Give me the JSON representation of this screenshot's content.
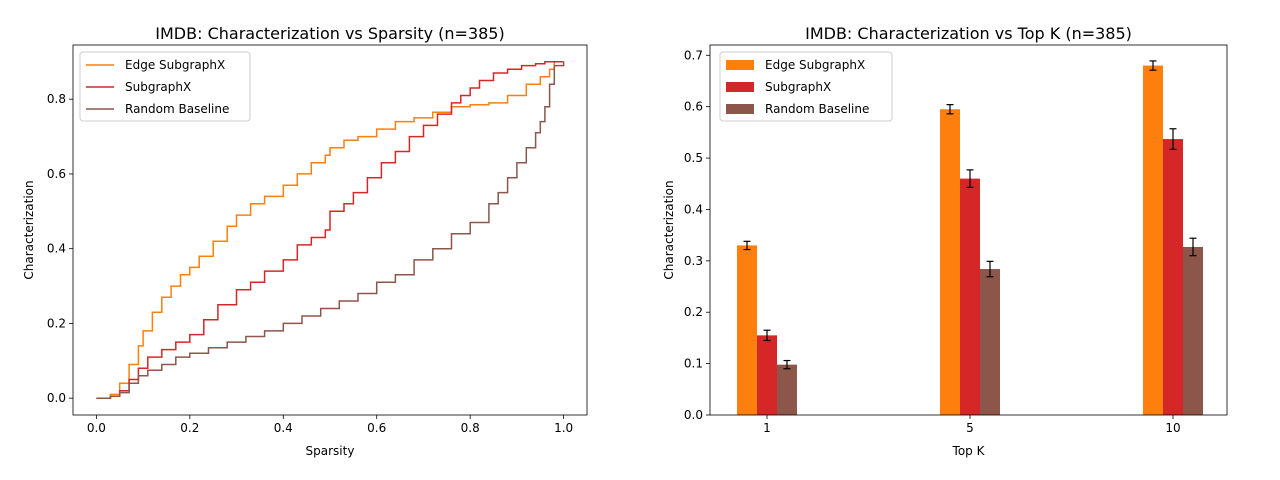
{
  "chart_data": [
    {
      "type": "line",
      "title": "IMDB: Characterization vs Sparsity (n=385)",
      "xlabel": "Sparsity",
      "ylabel": "Characterization",
      "xlim": [
        -0.05,
        1.05
      ],
      "ylim": [
        -0.045,
        0.945
      ],
      "xticks": [
        0.0,
        0.2,
        0.4,
        0.6,
        0.8,
        1.0
      ],
      "xtick_labels": [
        "0.0",
        "0.2",
        "0.4",
        "0.6",
        "0.8",
        "1.0"
      ],
      "yticks": [
        0.0,
        0.2,
        0.4,
        0.6,
        0.8
      ],
      "ytick_labels": [
        "0.0",
        "0.2",
        "0.4",
        "0.6",
        "0.8"
      ],
      "legend_position": "upper-left",
      "grid": false,
      "series": [
        {
          "name": "Edge SubgraphX",
          "color": "#ff7f0e",
          "x": [
            0.0,
            0.03,
            0.05,
            0.07,
            0.09,
            0.1,
            0.12,
            0.14,
            0.16,
            0.18,
            0.2,
            0.22,
            0.25,
            0.28,
            0.3,
            0.33,
            0.36,
            0.4,
            0.43,
            0.46,
            0.49,
            0.5,
            0.53,
            0.56,
            0.6,
            0.64,
            0.68,
            0.72,
            0.76,
            0.8,
            0.84,
            0.88,
            0.92,
            0.95,
            0.97,
            0.98,
            1.0
          ],
          "y": [
            0.0,
            0.01,
            0.04,
            0.09,
            0.14,
            0.18,
            0.23,
            0.27,
            0.3,
            0.33,
            0.35,
            0.38,
            0.42,
            0.46,
            0.49,
            0.52,
            0.54,
            0.57,
            0.6,
            0.63,
            0.65,
            0.67,
            0.69,
            0.7,
            0.72,
            0.74,
            0.75,
            0.765,
            0.78,
            0.785,
            0.79,
            0.81,
            0.84,
            0.86,
            0.88,
            0.9,
            0.9
          ]
        },
        {
          "name": "SubgraphX",
          "color": "#d62728",
          "x": [
            0.0,
            0.03,
            0.05,
            0.07,
            0.09,
            0.11,
            0.14,
            0.17,
            0.2,
            0.23,
            0.26,
            0.3,
            0.33,
            0.36,
            0.4,
            0.43,
            0.46,
            0.49,
            0.5,
            0.53,
            0.55,
            0.58,
            0.61,
            0.64,
            0.67,
            0.7,
            0.73,
            0.76,
            0.78,
            0.8,
            0.82,
            0.85,
            0.88,
            0.91,
            0.94,
            0.96,
            0.98,
            1.0
          ],
          "y": [
            0.0,
            0.005,
            0.02,
            0.05,
            0.08,
            0.11,
            0.13,
            0.15,
            0.17,
            0.21,
            0.25,
            0.29,
            0.31,
            0.34,
            0.37,
            0.41,
            0.43,
            0.45,
            0.5,
            0.52,
            0.55,
            0.59,
            0.63,
            0.66,
            0.7,
            0.73,
            0.76,
            0.79,
            0.81,
            0.83,
            0.85,
            0.87,
            0.88,
            0.89,
            0.895,
            0.9,
            0.9,
            0.9
          ]
        },
        {
          "name": "Random Baseline",
          "color": "#8c564b",
          "x": [
            0.0,
            0.03,
            0.05,
            0.07,
            0.09,
            0.11,
            0.14,
            0.17,
            0.2,
            0.24,
            0.28,
            0.32,
            0.36,
            0.4,
            0.44,
            0.48,
            0.52,
            0.56,
            0.6,
            0.64,
            0.68,
            0.72,
            0.76,
            0.8,
            0.84,
            0.86,
            0.88,
            0.9,
            0.92,
            0.94,
            0.95,
            0.96,
            0.97,
            0.98,
            1.0
          ],
          "y": [
            0.0,
            0.005,
            0.015,
            0.04,
            0.06,
            0.075,
            0.09,
            0.11,
            0.12,
            0.135,
            0.15,
            0.165,
            0.18,
            0.2,
            0.22,
            0.24,
            0.26,
            0.28,
            0.31,
            0.33,
            0.37,
            0.4,
            0.44,
            0.47,
            0.52,
            0.55,
            0.59,
            0.63,
            0.67,
            0.71,
            0.74,
            0.78,
            0.84,
            0.89,
            0.9
          ]
        }
      ]
    },
    {
      "type": "bar",
      "title": "IMDB: Characterization vs Top K (n=385)",
      "xlabel": "Top K",
      "ylabel": "Characterization",
      "categories": [
        "1",
        "5",
        "10"
      ],
      "ylim": [
        0.0,
        0.72
      ],
      "yticks": [
        0.0,
        0.1,
        0.2,
        0.3,
        0.4,
        0.5,
        0.6,
        0.7
      ],
      "ytick_labels": [
        "0.0",
        "0.1",
        "0.2",
        "0.3",
        "0.4",
        "0.5",
        "0.6",
        "0.7"
      ],
      "legend_position": "upper-left",
      "grid": false,
      "series": [
        {
          "name": "Edge SubgraphX",
          "color": "#ff7f0e",
          "values": [
            0.33,
            0.595,
            0.68
          ],
          "errors": [
            0.008,
            0.009,
            0.009
          ]
        },
        {
          "name": "SubgraphX",
          "color": "#d62728",
          "values": [
            0.155,
            0.46,
            0.537
          ],
          "errors": [
            0.01,
            0.017,
            0.02
          ]
        },
        {
          "name": "Random Baseline",
          "color": "#8c564b",
          "values": [
            0.098,
            0.284,
            0.327
          ],
          "errors": [
            0.008,
            0.015,
            0.017
          ]
        }
      ]
    }
  ]
}
